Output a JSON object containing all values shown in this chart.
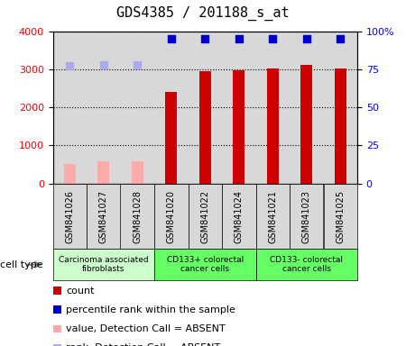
{
  "title": "GDS4385 / 201188_s_at",
  "samples": [
    "GSM841026",
    "GSM841027",
    "GSM841028",
    "GSM841020",
    "GSM841022",
    "GSM841024",
    "GSM841021",
    "GSM841023",
    "GSM841025"
  ],
  "count_values": [
    null,
    null,
    null,
    2400,
    2950,
    2980,
    3030,
    3110,
    3010
  ],
  "count_absent": [
    520,
    580,
    570,
    null,
    null,
    null,
    null,
    null,
    null
  ],
  "rank_values": [
    null,
    null,
    null,
    95,
    95,
    95,
    95,
    95,
    95
  ],
  "rank_absent": [
    77,
    78,
    78,
    null,
    null,
    null,
    null,
    null,
    null
  ],
  "ylim_left": [
    0,
    4000
  ],
  "ylim_right": [
    0,
    100
  ],
  "yticks_left": [
    0,
    1000,
    2000,
    3000,
    4000
  ],
  "yticks_right": [
    0,
    25,
    50,
    75,
    100
  ],
  "ytick_labels_right": [
    "0",
    "25",
    "50",
    "75",
    "100%"
  ],
  "cell_groups": [
    {
      "label": "Carcinoma associated\nfibroblasts",
      "start": 0,
      "end": 3,
      "color": "#ccffcc"
    },
    {
      "label": "CD133+ colorectal\ncancer cells",
      "start": 3,
      "end": 6,
      "color": "#66ff66"
    },
    {
      "label": "CD133- colorectal\ncancer cells",
      "start": 6,
      "end": 9,
      "color": "#66ff66"
    }
  ],
  "bar_color_present": "#cc0000",
  "bar_color_absent": "#ffaaaa",
  "dot_color_present": "#0000cc",
  "dot_color_absent": "#aaaaee",
  "bar_width": 0.35,
  "dot_size": 40,
  "legend_items": [
    {
      "label": "count",
      "color": "#cc0000"
    },
    {
      "label": "percentile rank within the sample",
      "color": "#0000cc"
    },
    {
      "label": "value, Detection Call = ABSENT",
      "color": "#ffaaaa"
    },
    {
      "label": "rank, Detection Call = ABSENT",
      "color": "#aaaaee"
    }
  ],
  "cell_type_label": "cell type",
  "background_color": "#ffffff",
  "plot_bg_color": "#d8d8d8",
  "xtick_bg_color": "#d8d8d8",
  "title_fontsize": 11,
  "axis_fontsize": 8,
  "label_fontsize": 8,
  "legend_fontsize": 8
}
